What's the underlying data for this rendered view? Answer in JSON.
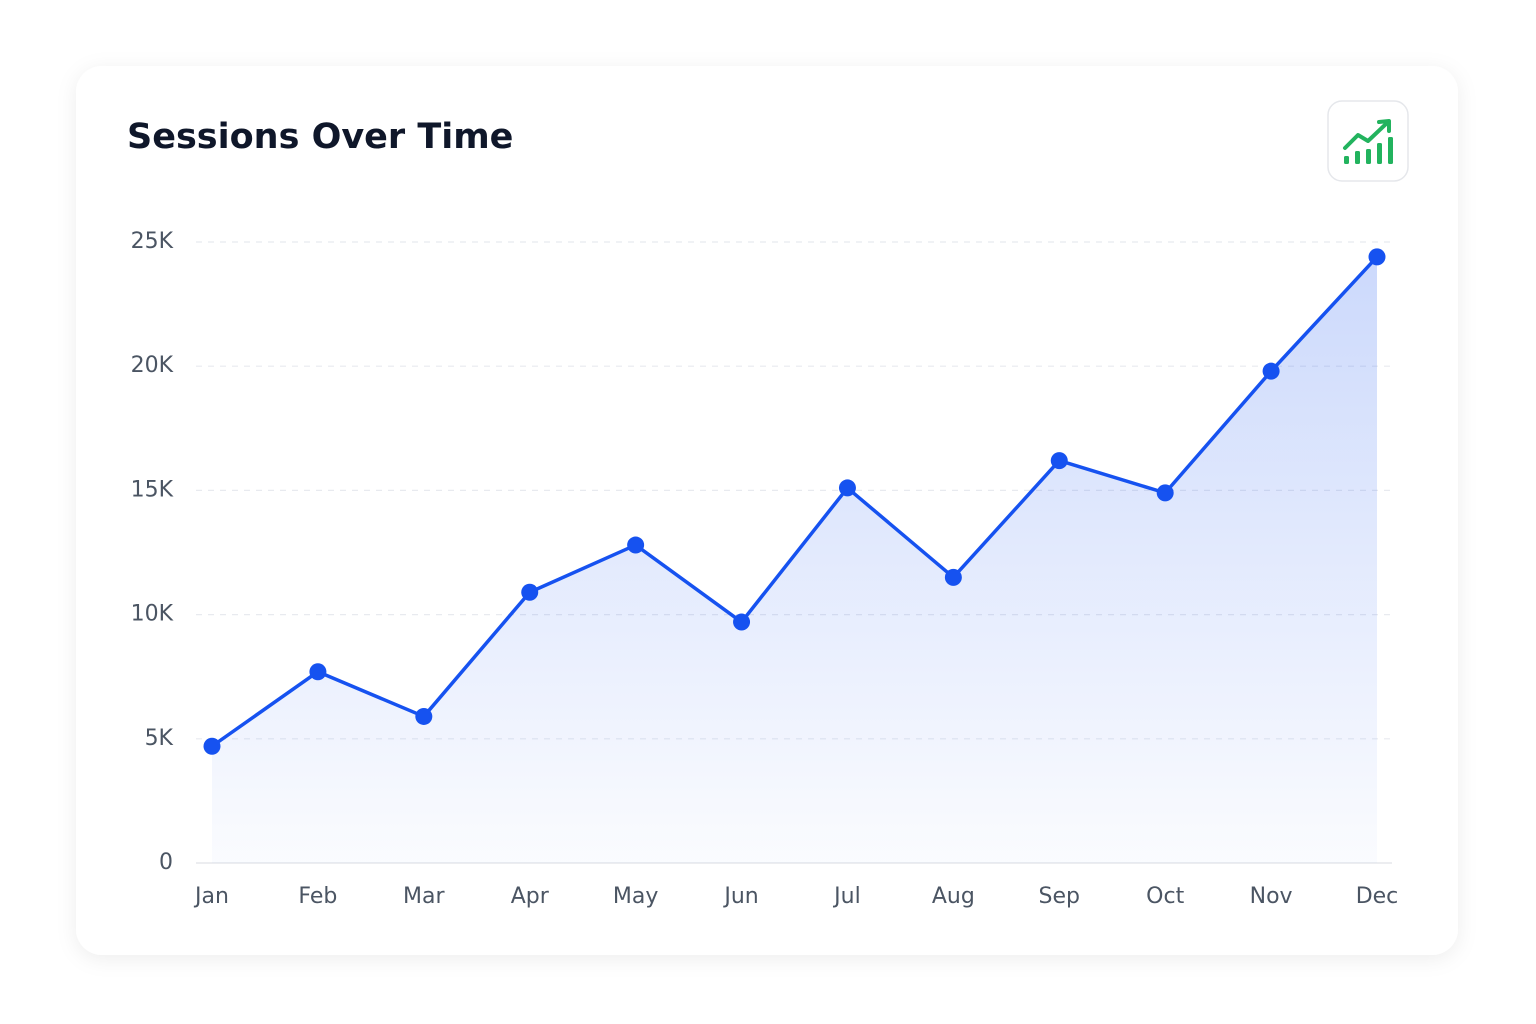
{
  "chart_data": {
    "type": "line",
    "title": "Sessions Over Time",
    "categories": [
      "Jan",
      "Feb",
      "Mar",
      "Apr",
      "May",
      "Jun",
      "Jul",
      "Aug",
      "Sep",
      "Oct",
      "Nov",
      "Dec"
    ],
    "values": [
      4700,
      7700,
      5900,
      10900,
      12800,
      9700,
      15100,
      11500,
      16200,
      14900,
      19800,
      24400
    ],
    "color": "#1652f0",
    "area": true,
    "grid": true,
    "ylim": [
      0,
      25000
    ],
    "yticks": [
      0,
      {
        "value": 5000,
        "label": "5K"
      },
      {
        "value": 10000,
        "label": "10K"
      },
      {
        "value": 15000,
        "label": "15K"
      },
      {
        "value": 20000,
        "label": "20K"
      },
      {
        "value": 25000,
        "label": "25K"
      }
    ]
  }
}
